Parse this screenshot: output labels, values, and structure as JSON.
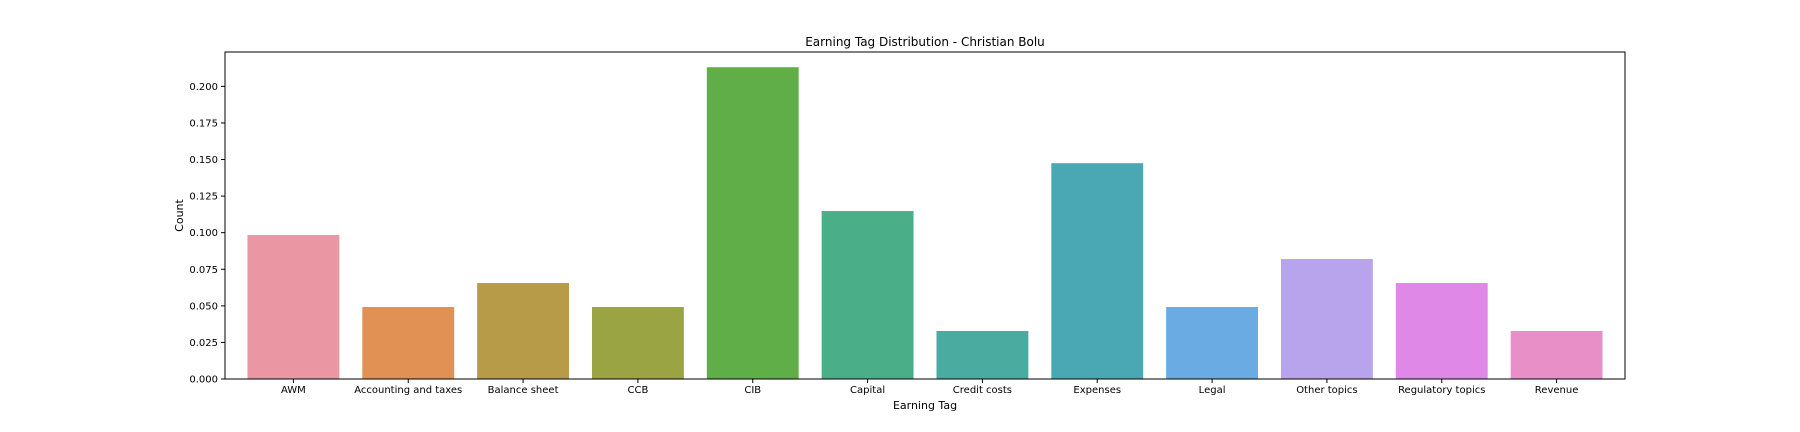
{
  "chart_data": {
    "type": "bar",
    "title": "Earning Tag Distribution - Christian Bolu",
    "xlabel": "Earning Tag",
    "ylabel": "Count",
    "ylim": [
      0,
      0.2235
    ],
    "yticks": [
      0.0,
      0.025,
      0.05,
      0.075,
      0.1,
      0.125,
      0.15,
      0.175,
      0.2
    ],
    "ytick_labels": [
      "0.000",
      "0.025",
      "0.050",
      "0.075",
      "0.100",
      "0.125",
      "0.150",
      "0.175",
      "0.200"
    ],
    "grid": false,
    "categories": [
      "AWM",
      "Accounting and taxes",
      "Balance sheet",
      "CCB",
      "CIB",
      "Capital",
      "Credit costs",
      "Expenses",
      "Legal",
      "Other topics",
      "Regulatory topics",
      "Revenue"
    ],
    "values": [
      0.0984,
      0.0492,
      0.0656,
      0.0492,
      0.2131,
      0.1148,
      0.0328,
      0.1475,
      0.0492,
      0.082,
      0.0656,
      0.0328
    ],
    "colors": [
      "#ea96a3",
      "#e19153",
      "#b89b49",
      "#9ba442",
      "#60ae47",
      "#4aae89",
      "#4aaba0",
      "#4aa8b4",
      "#6aabe4",
      "#b7a4ec",
      "#e088e8",
      "#e98fc8"
    ]
  }
}
